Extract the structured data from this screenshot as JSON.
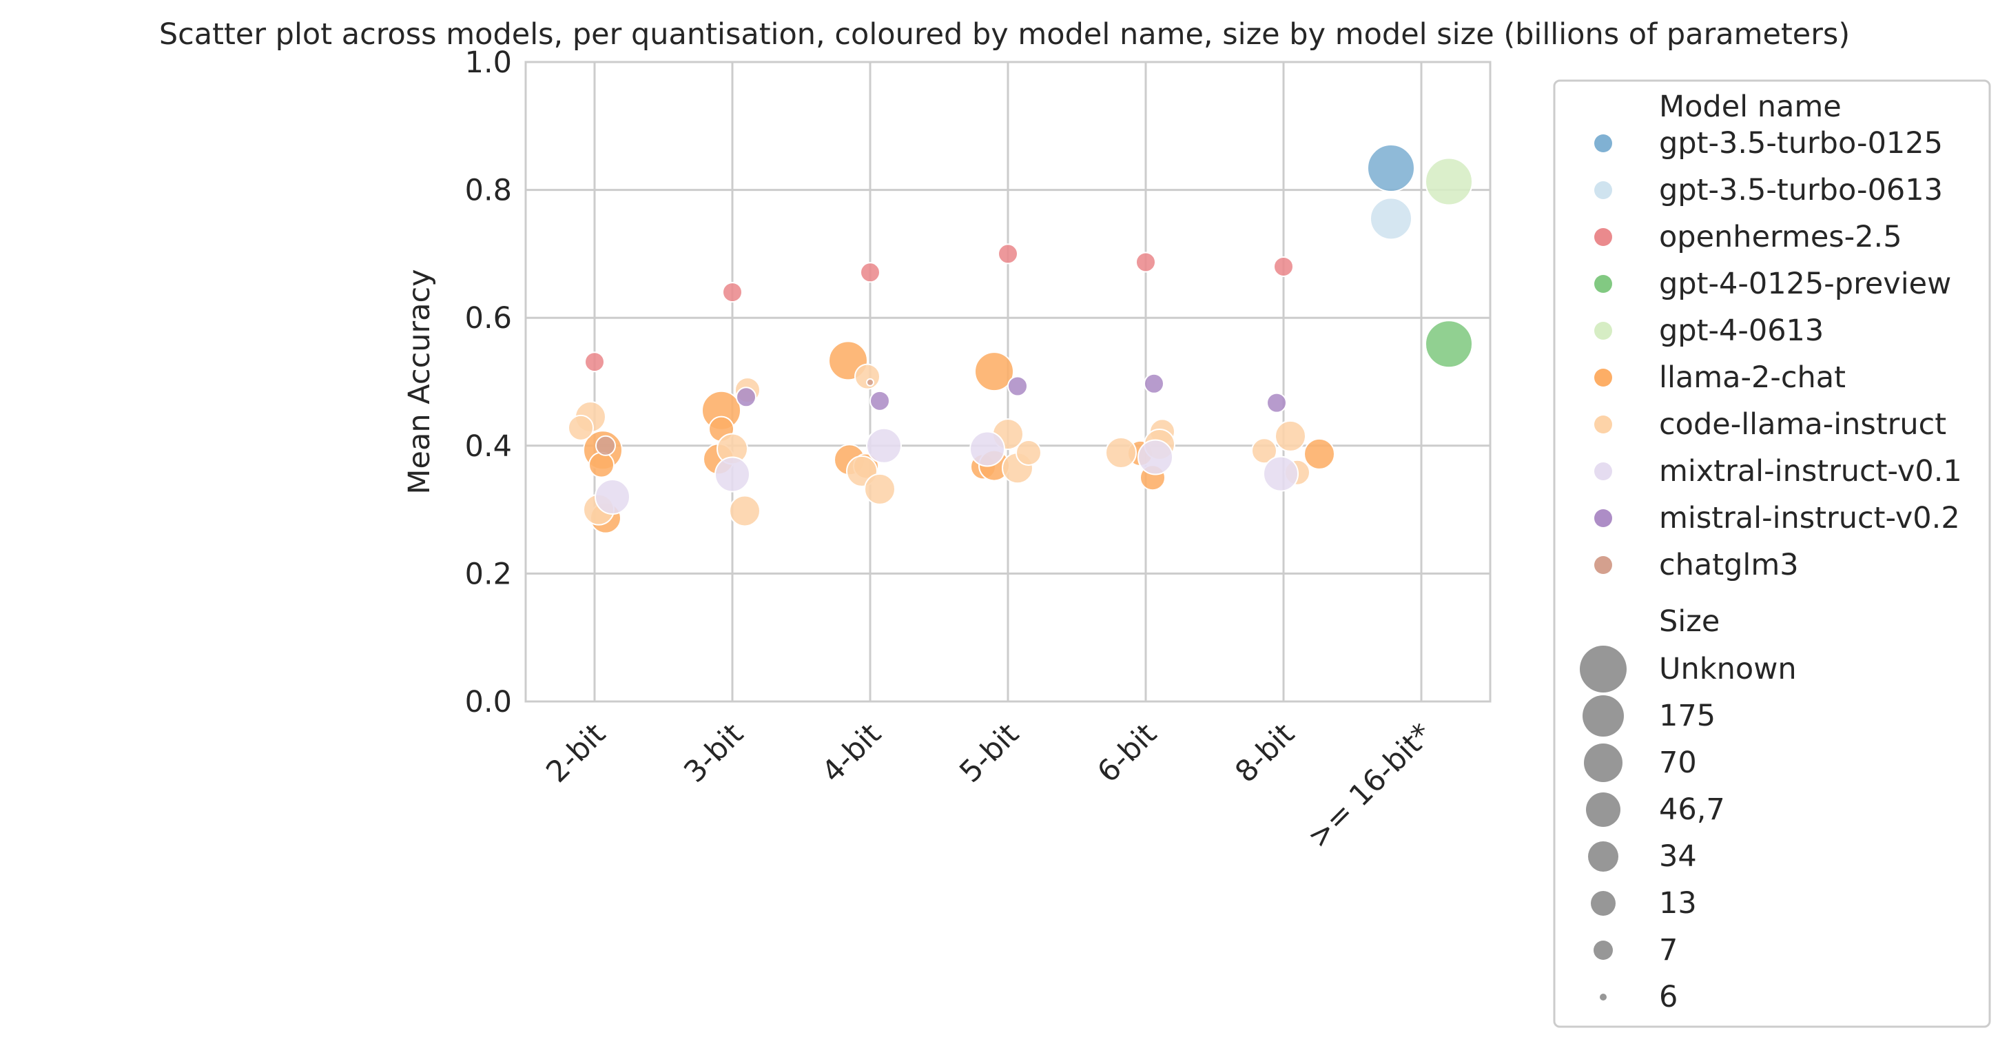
{
  "chart_data": {
    "type": "scatter",
    "title": "Scatter plot across models, per quantisation, coloured by model name, size by model size (billions of parameters)",
    "xlabel": "",
    "ylabel": "Mean Accuracy",
    "ylim": [
      0,
      1.0
    ],
    "yticks": [
      "0.0",
      "0.2",
      "0.4",
      "0.6",
      "0.8",
      "1.0"
    ],
    "categories": [
      "2-bit",
      "3-bit",
      "4-bit",
      "5-bit",
      "6-bit",
      "8-bit",
      ">= 16-bit*"
    ],
    "grid": true,
    "legend_placement": "outside right",
    "legend": {
      "color_title": "Model name",
      "size_title": "Size",
      "size_entries": [
        {
          "label": "Unknown",
          "r": 34
        },
        {
          "label": "175",
          "r": 30
        },
        {
          "label": "70",
          "r": 28
        },
        {
          "label": "46,7",
          "r": 25
        },
        {
          "label": "34",
          "r": 22
        },
        {
          "label": "13",
          "r": 18
        },
        {
          "label": "7",
          "r": 14
        },
        {
          "label": "6",
          "r": 5
        }
      ]
    },
    "series": [
      {
        "name": "gpt-3.5-turbo-0125",
        "color": "#80b1d3",
        "points": [
          {
            "x": 6,
            "offset": -0.22,
            "y": 0.834,
            "size": "Unknown"
          }
        ]
      },
      {
        "name": "gpt-3.5-turbo-0613",
        "color": "#cfe3ef",
        "points": [
          {
            "x": 6,
            "offset": -0.22,
            "y": 0.755,
            "size": "175"
          }
        ]
      },
      {
        "name": "openhermes-2.5",
        "color": "#ea8a8d",
        "points": [
          {
            "x": 0,
            "offset": 0.0,
            "y": 0.531,
            "size": "7"
          },
          {
            "x": 1,
            "offset": 0.0,
            "y": 0.64,
            "size": "7"
          },
          {
            "x": 2,
            "offset": 0.0,
            "y": 0.671,
            "size": "7"
          },
          {
            "x": 3,
            "offset": 0.0,
            "y": 0.7,
            "size": "7"
          },
          {
            "x": 4,
            "offset": 0.0,
            "y": 0.687,
            "size": "7"
          },
          {
            "x": 5,
            "offset": 0.0,
            "y": 0.68,
            "size": "7"
          }
        ]
      },
      {
        "name": "gpt-4-0125-preview",
        "color": "#82c982",
        "points": [
          {
            "x": 6,
            "offset": 0.2,
            "y": 0.559,
            "size": "Unknown"
          }
        ]
      },
      {
        "name": "gpt-4-0613",
        "color": "#d6edc4",
        "points": [
          {
            "x": 6,
            "offset": 0.2,
            "y": 0.813,
            "size": "Unknown"
          }
        ]
      },
      {
        "name": "llama-2-chat",
        "color": "#fdae66",
        "points": [
          {
            "x": 0,
            "offset": 0.06,
            "y": 0.393,
            "size": "70"
          },
          {
            "x": 0,
            "offset": 0.05,
            "y": 0.37,
            "size": "13"
          },
          {
            "x": 0,
            "offset": 0.08,
            "y": 0.287,
            "size": "34"
          },
          {
            "x": 1,
            "offset": -0.08,
            "y": 0.455,
            "size": "70"
          },
          {
            "x": 1,
            "offset": -0.1,
            "y": 0.379,
            "size": "34"
          },
          {
            "x": 1,
            "offset": -0.08,
            "y": 0.426,
            "size": "13"
          },
          {
            "x": 2,
            "offset": -0.16,
            "y": 0.533,
            "size": "70"
          },
          {
            "x": 2,
            "offset": -0.15,
            "y": 0.378,
            "size": "34"
          },
          {
            "x": 2,
            "offset": -0.03,
            "y": 0.368,
            "size": "13"
          },
          {
            "x": 3,
            "offset": -0.1,
            "y": 0.516,
            "size": "70"
          },
          {
            "x": 3,
            "offset": -0.18,
            "y": 0.367,
            "size": "13"
          },
          {
            "x": 3,
            "offset": -0.1,
            "y": 0.369,
            "size": "34"
          },
          {
            "x": 4,
            "offset": -0.04,
            "y": 0.388,
            "size": "13"
          },
          {
            "x": 4,
            "offset": 0.05,
            "y": 0.35,
            "size": "13"
          },
          {
            "x": 5,
            "offset": 0.26,
            "y": 0.387,
            "size": "34"
          }
        ]
      },
      {
        "name": "code-llama-instruct",
        "color": "#fdd3a8",
        "points": [
          {
            "x": 0,
            "offset": -0.03,
            "y": 0.445,
            "size": "34"
          },
          {
            "x": 0,
            "offset": -0.1,
            "y": 0.428,
            "size": "13"
          },
          {
            "x": 0,
            "offset": 0.03,
            "y": 0.3,
            "size": "34"
          },
          {
            "x": 1,
            "offset": 0.11,
            "y": 0.487,
            "size": "13"
          },
          {
            "x": 1,
            "offset": 0.0,
            "y": 0.395,
            "size": "34"
          },
          {
            "x": 1,
            "offset": 0.09,
            "y": 0.298,
            "size": "34"
          },
          {
            "x": 2,
            "offset": -0.02,
            "y": 0.508,
            "size": "13"
          },
          {
            "x": 2,
            "offset": -0.06,
            "y": 0.36,
            "size": "34"
          },
          {
            "x": 2,
            "offset": 0.07,
            "y": 0.332,
            "size": "34"
          },
          {
            "x": 3,
            "offset": 0.0,
            "y": 0.418,
            "size": "34"
          },
          {
            "x": 3,
            "offset": 0.07,
            "y": 0.365,
            "size": "34"
          },
          {
            "x": 3,
            "offset": 0.15,
            "y": 0.389,
            "size": "13"
          },
          {
            "x": 4,
            "offset": -0.18,
            "y": 0.389,
            "size": "34"
          },
          {
            "x": 4,
            "offset": 0.12,
            "y": 0.422,
            "size": "13"
          },
          {
            "x": 4,
            "offset": 0.1,
            "y": 0.402,
            "size": "34"
          },
          {
            "x": 5,
            "offset": -0.14,
            "y": 0.392,
            "size": "13"
          },
          {
            "x": 5,
            "offset": 0.05,
            "y": 0.415,
            "size": "34"
          },
          {
            "x": 5,
            "offset": 0.1,
            "y": 0.358,
            "size": "13"
          }
        ]
      },
      {
        "name": "mixtral-instruct-v0.1",
        "color": "#e5dcf0",
        "points": [
          {
            "x": 0,
            "offset": 0.13,
            "y": 0.32,
            "size": "46,7"
          },
          {
            "x": 1,
            "offset": 0.0,
            "y": 0.355,
            "size": "46,7"
          },
          {
            "x": 2,
            "offset": 0.1,
            "y": 0.4,
            "size": "46,7"
          },
          {
            "x": 3,
            "offset": -0.15,
            "y": 0.395,
            "size": "46,7"
          },
          {
            "x": 4,
            "offset": 0.07,
            "y": 0.382,
            "size": "46,7"
          },
          {
            "x": 5,
            "offset": -0.02,
            "y": 0.356,
            "size": "46,7"
          }
        ]
      },
      {
        "name": "mistral-instruct-v0.2",
        "color": "#ad8dc6",
        "points": [
          {
            "x": 1,
            "offset": 0.1,
            "y": 0.476,
            "size": "7"
          },
          {
            "x": 2,
            "offset": 0.07,
            "y": 0.47,
            "size": "7"
          },
          {
            "x": 3,
            "offset": 0.07,
            "y": 0.493,
            "size": "7"
          },
          {
            "x": 4,
            "offset": 0.06,
            "y": 0.497,
            "size": "7"
          },
          {
            "x": 5,
            "offset": -0.05,
            "y": 0.467,
            "size": "7"
          }
        ]
      },
      {
        "name": "chatglm3",
        "color": "#d4a08e",
        "points": [
          {
            "x": 0,
            "offset": 0.08,
            "y": 0.4,
            "size": "7"
          },
          {
            "x": 2,
            "offset": 0.0,
            "y": 0.499,
            "size": "6"
          }
        ]
      }
    ]
  }
}
